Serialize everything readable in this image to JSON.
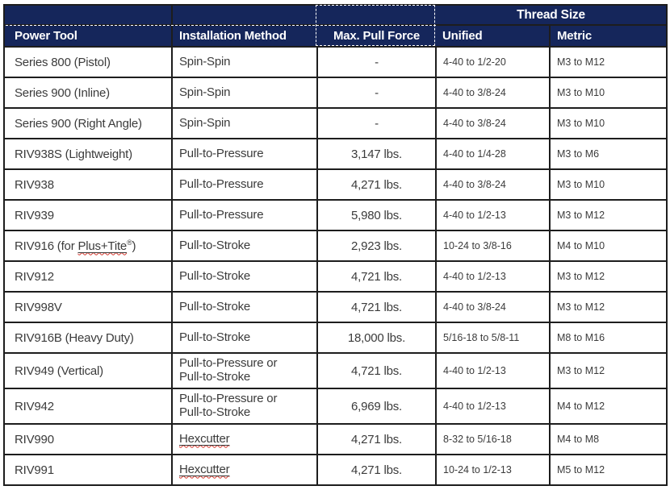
{
  "colors": {
    "header_bg": "#15265b",
    "header_text": "#ffffff",
    "body_text": "#3b3b3b",
    "border": "#1d1d1d",
    "squiggle": "#d6352b"
  },
  "table": {
    "header": {
      "thread_size_group": "Thread Size",
      "columns": [
        "Power Tool",
        "Installation Method",
        "Max. Pull Force",
        "Unified",
        "Metric"
      ]
    },
    "rows": [
      {
        "tool": [
          {
            "t": "Series 800 (Pistol)"
          }
        ],
        "method": [
          {
            "t": "Spin-Spin"
          }
        ],
        "force": "-",
        "unified": "4-40 to 1/2-20",
        "metric": "M3 to M12"
      },
      {
        "tool": [
          {
            "t": "Series 900 (Inline)"
          }
        ],
        "method": [
          {
            "t": "Spin-Spin"
          }
        ],
        "force": "-",
        "unified": "4-40 to 3/8-24",
        "metric": "M3 to M10"
      },
      {
        "tool": [
          {
            "t": "Series 900 (Right Angle)"
          }
        ],
        "method": [
          {
            "t": "Spin-Spin"
          }
        ],
        "force": "-",
        "unified": "4-40 to 3/8-24",
        "metric": "M3 to M10"
      },
      {
        "tool": [
          {
            "t": "RIV938S (Lightweight)"
          }
        ],
        "method": [
          {
            "t": "Pull-to-Pressure"
          }
        ],
        "force": "3,147 lbs.",
        "unified": "4-40 to 1/4-28",
        "metric": "M3 to M6"
      },
      {
        "tool": [
          {
            "t": "RIV938"
          }
        ],
        "method": [
          {
            "t": "Pull-to-Pressure"
          }
        ],
        "force": "4,271 lbs.",
        "unified": "4-40 to 3/8-24",
        "metric": "M3 to M10"
      },
      {
        "tool": [
          {
            "t": "RIV939"
          }
        ],
        "method": [
          {
            "t": "Pull-to-Pressure"
          }
        ],
        "force": "5,980 lbs.",
        "unified": "4-40 to 1/2-13",
        "metric": "M3 to M12"
      },
      {
        "tool": [
          {
            "t": "RIV916 (for "
          },
          {
            "t": "Plus+Tite",
            "mark": true
          },
          {
            "t": "®",
            "sup": true
          },
          {
            "t": ")"
          }
        ],
        "method": [
          {
            "t": "Pull-to-Stroke"
          }
        ],
        "force": "2,923 lbs.",
        "unified": "10-24 to 3/8-16",
        "metric": "M4 to M10"
      },
      {
        "tool": [
          {
            "t": "RIV912"
          }
        ],
        "method": [
          {
            "t": "Pull-to-Stroke"
          }
        ],
        "force": "4,721 lbs.",
        "unified": "4-40 to 1/2-13",
        "metric": "M3 to M12"
      },
      {
        "tool": [
          {
            "t": "RIV998V"
          }
        ],
        "method": [
          {
            "t": "Pull-to-Stroke"
          }
        ],
        "force": "4,721 lbs.",
        "unified": "4-40 to 3/8-24",
        "metric": "M3 to M12"
      },
      {
        "tool": [
          {
            "t": "RIV916B (Heavy Duty)"
          }
        ],
        "method": [
          {
            "t": "Pull-to-Stroke"
          }
        ],
        "force": "18,000 lbs.",
        "unified": "5/16-18 to 5/8-11",
        "metric": "M8 to M16"
      },
      {
        "tool": [
          {
            "t": "RIV949 (Vertical)"
          }
        ],
        "method": [
          {
            "t": "Pull-to-Pressure or"
          },
          {
            "br": true
          },
          {
            "t": "Pull-to-Stroke"
          }
        ],
        "force": "4,721 lbs.",
        "unified": "4-40 to 1/2-13",
        "metric": "M3 to M12",
        "tall": true
      },
      {
        "tool": [
          {
            "t": "RIV942"
          }
        ],
        "method": [
          {
            "t": "Pull-to-Pressure or"
          },
          {
            "br": true
          },
          {
            "t": "Pull-to-Stroke"
          }
        ],
        "force": "6,969 lbs.",
        "unified": "4-40 to 1/2-13",
        "metric": "M4 to M12",
        "tall": true
      },
      {
        "tool": [
          {
            "t": "RIV990"
          }
        ],
        "method": [
          {
            "t": "Hexcutter",
            "mark": true
          }
        ],
        "force": "4,271 lbs.",
        "unified": "8-32 to 5/16-18",
        "metric": "M4 to M8"
      },
      {
        "tool": [
          {
            "t": "RIV991"
          }
        ],
        "method": [
          {
            "t": "Hexcutter",
            "mark": true
          }
        ],
        "force": "4,271 lbs.",
        "unified": "10-24 to 1/2-13",
        "metric": "M5 to M12"
      }
    ]
  }
}
